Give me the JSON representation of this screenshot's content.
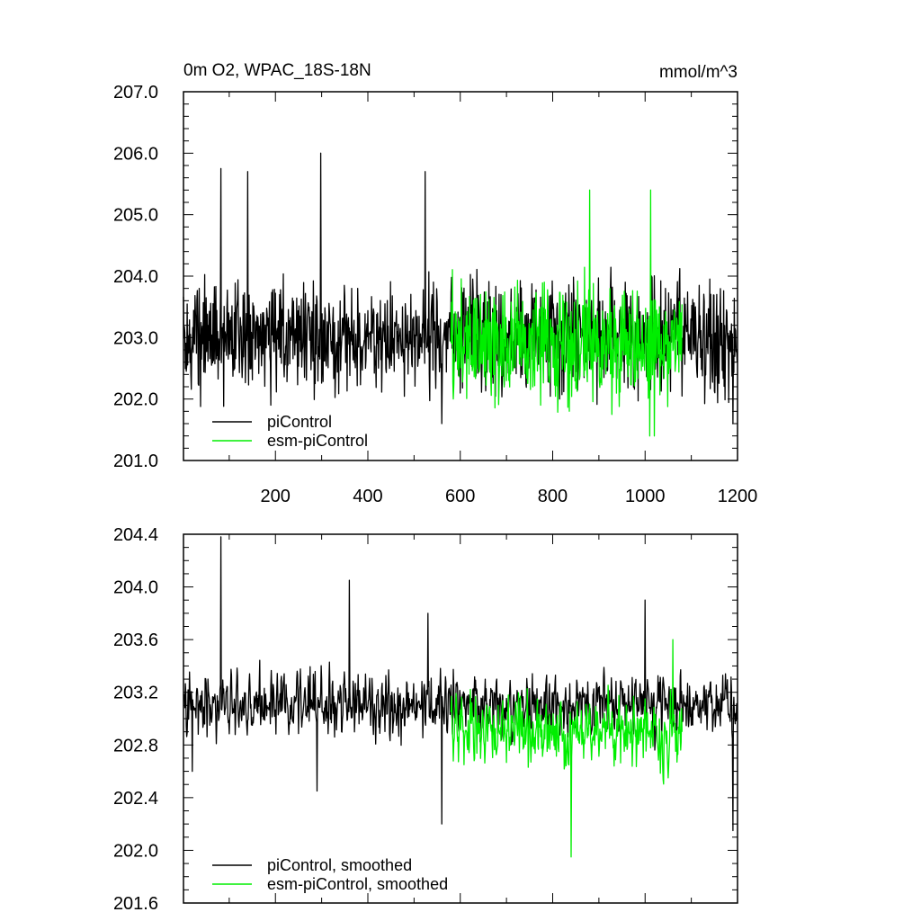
{
  "chart_data": [
    {
      "type": "line",
      "title": "0m O2, WPAC_18S-18N",
      "units": "mmol/m^3",
      "xlim": [
        1,
        1200
      ],
      "ylim": [
        201.0,
        207.0
      ],
      "yticks": [
        "201.0",
        "202.0",
        "203.0",
        "204.0",
        "205.0",
        "206.0",
        "207.0"
      ],
      "xticks": [
        "200",
        "400",
        "600",
        "800",
        "1000",
        "1200"
      ],
      "legend_position": "bottom-left",
      "series": [
        {
          "name": "piControl",
          "color": "#000000",
          "x_range": [
            1,
            1200
          ],
          "mean": 203.0,
          "amplitude": 0.75,
          "peaks": [
            [
              82,
              205.75
            ],
            [
              140,
              205.7
            ],
            [
              298,
              206.0
            ],
            [
              524,
              205.7
            ]
          ],
          "troughs": [
            [
              190,
              201.9
            ],
            [
              560,
              201.6
            ],
            [
              1190,
              201.6
            ]
          ]
        },
        {
          "name": "esm-piControl",
          "color": "#00ee00",
          "x_range": [
            580,
            1080
          ],
          "mean": 202.9,
          "amplitude": 0.85,
          "peaks": [
            [
              880,
              205.4
            ],
            [
              1012,
              205.4
            ]
          ],
          "troughs": [
            [
              1010,
              201.4
            ],
            [
              1020,
              201.4
            ]
          ]
        }
      ]
    },
    {
      "type": "line",
      "title": "",
      "xlim": [
        1,
        1200
      ],
      "ylim": [
        201.6,
        204.4
      ],
      "yticks": [
        "201.6",
        "202.0",
        "202.4",
        "202.8",
        "203.2",
        "203.6",
        "204.0",
        "204.4"
      ],
      "legend_position": "bottom-left",
      "series": [
        {
          "name": "piControl, smoothed",
          "color": "#000000",
          "x_range": [
            1,
            1200
          ],
          "mean": 203.1,
          "amplitude": 0.35,
          "peaks": [
            [
              82,
              204.4
            ],
            [
              360,
              204.05
            ],
            [
              530,
              203.8
            ],
            [
              1000,
              203.9
            ]
          ],
          "troughs": [
            [
              20,
              202.6
            ],
            [
              290,
              202.45
            ],
            [
              560,
              202.2
            ],
            [
              1190,
              202.15
            ]
          ]
        },
        {
          "name": "esm-piControl, smoothed",
          "color": "#00ee00",
          "x_range": [
            580,
            1080
          ],
          "mean": 202.9,
          "amplitude": 0.4,
          "peaks": [
            [
              1060,
              203.6
            ]
          ],
          "troughs": [
            [
              840,
              201.95
            ]
          ]
        }
      ]
    }
  ]
}
